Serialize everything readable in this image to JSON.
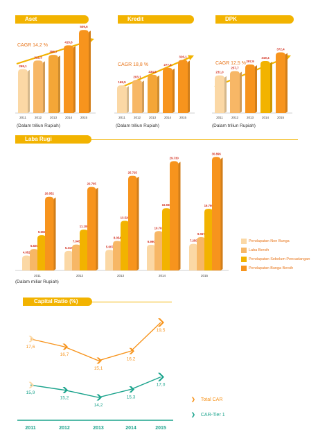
{
  "colors": {
    "header": "#f2b300",
    "orange": "#f7941d",
    "teal": "#1aa38c"
  },
  "aset": {
    "title": "Aset",
    "cagr": "CAGR 14,2 %",
    "unit": "(Dalam triliun Rupiah)"
  },
  "kredit": {
    "title": "Kredit",
    "cagr": "CAGR 18,8 %",
    "unit": "(Dalam triliun Rupiah)"
  },
  "dpk": {
    "title": "DPK",
    "cagr": "CAGR 12,5 %",
    "unit": "(Dalam triliun Rupiah)"
  },
  "laba": {
    "title": "Laba Rugi",
    "unit": "(Dalam miliar Rupiah)"
  },
  "capital": {
    "title": "Capital Ratio (%)"
  },
  "chart_data": [
    {
      "type": "bar",
      "title": "Aset",
      "categories": [
        "2011",
        "2012",
        "2013",
        "2014",
        "2015"
      ],
      "values": [
        269.1,
        322.3,
        356.7,
        415.6,
        509.6
      ],
      "labels": [
        "269,1",
        "322,3",
        "356,7",
        "415,6",
        "509,6"
      ],
      "colors": [
        "#fbd8a5",
        "#f7b766",
        "#f4a637",
        "#f7941d",
        "#f7941d"
      ],
      "ylim": [
        0,
        520
      ]
    },
    {
      "type": "bar",
      "title": "Kredit",
      "categories": [
        "2011",
        "2012",
        "2013",
        "2014",
        "2015"
      ],
      "values": [
        169.5,
        203.1,
        234.9,
        277.6,
        326.1
      ],
      "labels": [
        "169,5",
        "203,1",
        "234,9",
        "277,6",
        "326,1"
      ],
      "colors": [
        "#fbd8a5",
        "#f7b766",
        "#f4a637",
        "#f7941d",
        "#f7941d"
      ],
      "ylim": [
        0,
        520
      ]
    },
    {
      "type": "bar",
      "title": "DPK",
      "categories": [
        "2011",
        "2012",
        "2013",
        "2014",
        "2015"
      ],
      "values": [
        231.0,
        257.7,
        297.9,
        319.4,
        372.4
      ],
      "labels": [
        "231,0",
        "257,7",
        "297,9",
        "319,4",
        "372,4"
      ],
      "colors": [
        "#fbd8a5",
        "#f7b766",
        "#f7941d",
        "#f2b300",
        "#f7941d"
      ],
      "ylim": [
        0,
        520
      ]
    },
    {
      "type": "bar",
      "title": "Laba Rugi",
      "categories": [
        "2011",
        "2012",
        "2013",
        "2014",
        "2015"
      ],
      "series": [
        {
          "name": "Pendapatan Non Bunga",
          "color": "#fbd8a5",
          "values": [
            4052,
            5317,
            5607,
            6990,
            7250
          ],
          "labels": [
            "4.052",
            "5.317",
            "5.607",
            "6.990",
            "7.250"
          ]
        },
        {
          "name": "Laba Bersih",
          "color": "#f7b766",
          "values": [
            5820,
            7045,
            8054,
            10703,
            9067
          ],
          "labels": [
            "5.820",
            "7.045",
            "8.054",
            "10.703",
            "9.067"
          ]
        },
        {
          "name": "Pendapatan Sebelum Pencadangan",
          "color": "#f2b300",
          "values": [
            9602,
            11100,
            13520,
            16938,
            16760
          ],
          "labels": [
            "9.602",
            "11.100",
            "13.520",
            "16.938",
            "16.760"
          ]
        },
        {
          "name": "Pendapatan Bunga Bersih",
          "color": "#f7941d",
          "values": [
            20052,
            22705,
            25725,
            29730,
            30896
          ],
          "labels": [
            "20.052",
            "22.705",
            "25.725",
            "29.730",
            "30.896"
          ]
        }
      ],
      "ylim": [
        0,
        32000
      ]
    },
    {
      "type": "line",
      "title": "Capital Ratio (%)",
      "x": [
        "2011",
        "2012",
        "2013",
        "2014",
        "2015"
      ],
      "series": [
        {
          "name": "Total CAR",
          "color": "#f7941d",
          "values": [
            17.6,
            16.7,
            15.1,
            16.2,
            19.5
          ],
          "labels": [
            "17,6",
            "16,7",
            "15,1",
            "16,2",
            "19,5"
          ]
        },
        {
          "name": "CAR-Tier 1",
          "color": "#1aa38c",
          "values": [
            15.9,
            15.2,
            14.2,
            15.3,
            17.0
          ],
          "labels": [
            "15,9",
            "15,2",
            "14,2",
            "15,3",
            "17,0"
          ]
        }
      ]
    }
  ]
}
